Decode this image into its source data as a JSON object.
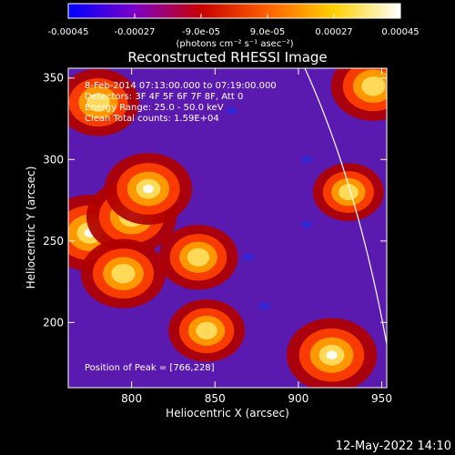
{
  "chart_data": {
    "type": "heatmap",
    "title": "Reconstructed RHESSI Image",
    "xlabel": "Heliocentric X (arcsec)",
    "ylabel": "Heliocentric Y (arcsec)",
    "xlim": [
      762,
      953
    ],
    "ylim": [
      160,
      356
    ],
    "x_ticks": [
      800,
      850,
      900,
      950
    ],
    "y_ticks": [
      200,
      250,
      300,
      350
    ],
    "colorbar": {
      "vmin": -0.00045,
      "vmax": 0.00045,
      "tick_values": [
        -0.00045,
        -0.00027,
        -9e-05,
        9e-05,
        0.00027,
        0.00045
      ],
      "tick_labels": [
        "-0.00045",
        "-0.00027",
        "-9.0e-05",
        "9.0e-05",
        "0.00027",
        "0.00045"
      ],
      "unit_label": "(photons cm⁻² s⁻¹ asec⁻²)",
      "colormap": [
        "#0000ff",
        "#7b00c8",
        "#c80000",
        "#ff6000",
        "#ffd000",
        "#ffffff"
      ]
    },
    "annotations": [
      "8-Feb-2014 07:13:00.000 to 07:19:00.000",
      "Detectors: 3F 4F 5F 6F 7F 8F, Att 0",
      "Energy Range: 25.0 - 50.0 keV",
      "Clean    Total counts: 1.59E+04"
    ],
    "peak_label": "Position of Peak = [766,228]",
    "bright_regions": [
      {
        "x": 775,
        "y": 255,
        "level": 0.95
      },
      {
        "x": 800,
        "y": 265,
        "level": 0.9
      },
      {
        "x": 810,
        "y": 282,
        "level": 0.85
      },
      {
        "x": 795,
        "y": 230,
        "level": 0.8
      },
      {
        "x": 840,
        "y": 240,
        "level": 0.7
      },
      {
        "x": 780,
        "y": 335,
        "level": 0.75
      },
      {
        "x": 945,
        "y": 345,
        "level": 0.8
      },
      {
        "x": 920,
        "y": 180,
        "level": 0.9
      },
      {
        "x": 845,
        "y": 195,
        "level": 0.65
      },
      {
        "x": 930,
        "y": 280,
        "level": 0.55
      }
    ]
  },
  "footer": {
    "timestamp": "12-May-2022 14:10"
  }
}
